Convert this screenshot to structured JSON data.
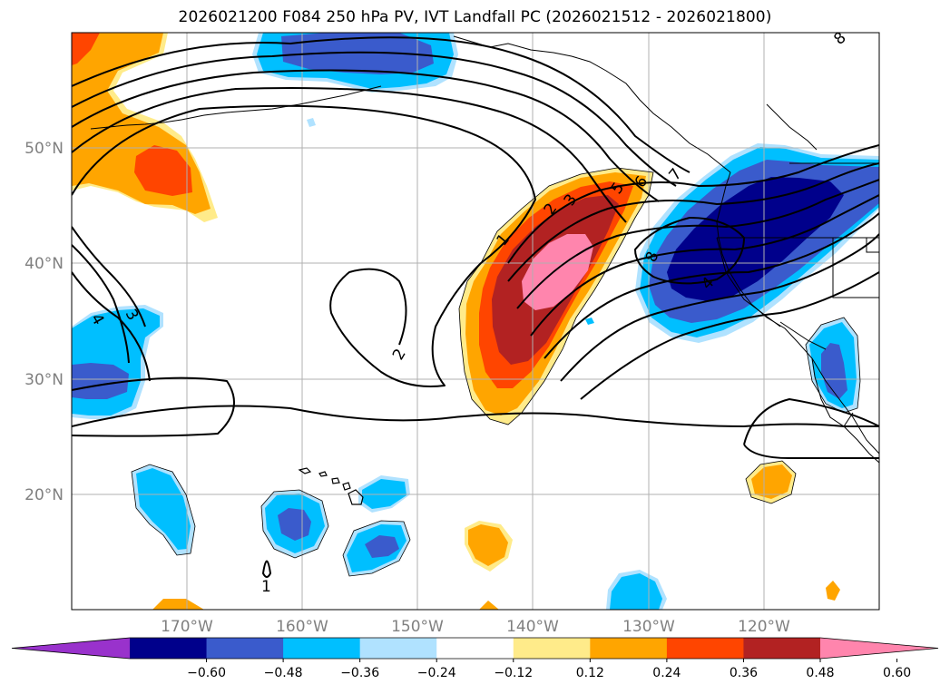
{
  "title": "2026021200 F084 250 hPa PV, IVT Landfall PC (2026021512 - 2026021800)",
  "map": {
    "lon_range": [
      -180,
      -110
    ],
    "lat_range": [
      10,
      60
    ],
    "gridlines": true,
    "lon_ticks": [
      {
        "lon": -170,
        "label": "170°W"
      },
      {
        "lon": -160,
        "label": "160°W"
      },
      {
        "lon": -150,
        "label": "150°W"
      },
      {
        "lon": -140,
        "label": "140°W"
      },
      {
        "lon": -130,
        "label": "130°W"
      },
      {
        "lon": -120,
        "label": "120°W"
      }
    ],
    "lat_ticks": [
      {
        "lat": 50,
        "label": "50°N"
      },
      {
        "lat": 40,
        "label": "40°N"
      },
      {
        "lat": 30,
        "label": "30°N"
      },
      {
        "lat": 20,
        "label": "20°N"
      }
    ],
    "contour_labels": [
      "1",
      "2",
      "3",
      "5",
      "6",
      "7",
      "8",
      "4",
      "3",
      "2",
      "1",
      "8",
      "4"
    ]
  },
  "colorbar": {
    "extend": "both",
    "bins": [
      {
        "color": "#9932cc"
      },
      {
        "color": "#00008b"
      },
      {
        "color": "#3a5bcc"
      },
      {
        "color": "#00bfff"
      },
      {
        "color": "#b0e2ff"
      },
      {
        "color": "#ffffff"
      },
      {
        "color": "#ffeb8a"
      },
      {
        "color": "#ffa500"
      },
      {
        "color": "#ff4500"
      },
      {
        "color": "#b22222"
      },
      {
        "color": "#ff85ad"
      }
    ],
    "ticks": [
      "−0.60",
      "−0.48",
      "−0.36",
      "−0.24",
      "−0.12",
      "0.12",
      "0.24",
      "0.36",
      "0.48",
      "0.60"
    ]
  },
  "colors": {
    "strong_neg": "#00008b",
    "mod_neg": "#3a5bcc",
    "weak_neg": "#00bfff",
    "faint_neg": "#b0e2ff",
    "faint_pos": "#ffeb8a",
    "weak_pos": "#ffa500",
    "mod_pos": "#ff4500",
    "strong_pos": "#b22222",
    "max_pos": "#ff85ad"
  }
}
